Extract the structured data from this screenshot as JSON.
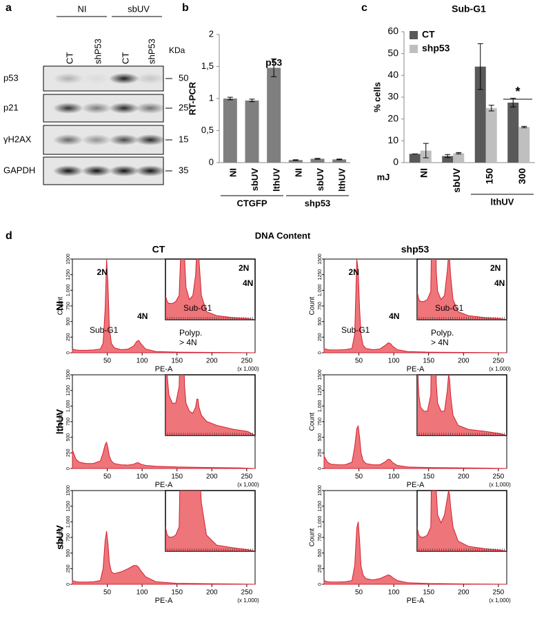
{
  "panel_labels": [
    "a",
    "b",
    "c",
    "d"
  ],
  "blot": {
    "group_labels": [
      "NI",
      "sbUV"
    ],
    "lane_labels": [
      "CT",
      "shP53",
      "CT",
      "shP53"
    ],
    "unit": "KDa",
    "bands": [
      {
        "label": "p53",
        "kda": 50
      },
      {
        "label": "p21",
        "kda": 25
      },
      {
        "label": "γH2AX",
        "kda": 15
      },
      {
        "label": "GAPDH",
        "kda": 35
      }
    ]
  },
  "flow": {
    "title": "DNA Content",
    "columns": [
      "CT",
      "shp53"
    ],
    "rows": [
      "NI",
      "lthUV",
      "sbUV"
    ]
  },
  "chart_data": [
    {
      "type": "bar",
      "title": "p53",
      "ylabel": "RT-PCR",
      "color": "#7f7f7f",
      "categories": [
        "NI",
        "sbUV",
        "lthUV",
        "NI",
        "sbUV",
        "lthUV"
      ],
      "values": [
        1.0,
        0.97,
        1.48,
        0.04,
        0.06,
        0.05
      ],
      "errors": [
        0.02,
        0.02,
        0.14,
        0.005,
        0.006,
        0.005
      ],
      "groups": [
        "CTGFP",
        "shp53"
      ],
      "ylim": [
        0,
        2
      ],
      "yticks": [
        0,
        {
          "value": 0.5,
          "label": "0,5"
        },
        1,
        {
          "value": 1.5,
          "label": "1,5"
        },
        2
      ]
    },
    {
      "type": "grouped-bar",
      "title": "Sub-G1",
      "ylabel": "% cells",
      "xlabel": "mJ",
      "group_label": "lthUV",
      "categories": [
        "NI",
        "sbUV",
        "150",
        "300"
      ],
      "series": [
        {
          "name": "CT",
          "color": "#595959",
          "values": [
            4,
            3,
            44,
            27.5
          ],
          "errors": [
            0,
            0.7,
            10.5,
            2
          ]
        },
        {
          "name": "shp53",
          "color": "#bfbfbf",
          "values": [
            5.5,
            4.3,
            25,
            16.3
          ],
          "errors": [
            3.3,
            0.3,
            1.3,
            0.3
          ]
        }
      ],
      "significance": "*",
      "legend": "upper-left",
      "ylim": [
        0,
        60
      ],
      "yticks": [
        0,
        10,
        20,
        30,
        40,
        50,
        60
      ]
    },
    {
      "type": "area",
      "color": "#e8474c",
      "xlabel": "PE-A",
      "xunit": "(x 1,000)",
      "ylabel": "Count",
      "x": [
        0,
        5,
        10,
        20,
        30,
        40,
        44,
        47,
        49,
        51,
        53,
        56,
        60,
        70,
        80,
        88,
        92,
        95,
        98,
        105,
        120,
        150,
        200,
        240,
        262
      ],
      "values": [
        60,
        45,
        40,
        40,
        45,
        60,
        150,
        700,
        1500,
        1100,
        400,
        150,
        80,
        50,
        60,
        110,
        180,
        200,
        150,
        60,
        20,
        10,
        5,
        3,
        0
      ],
      "annotations": [
        "2N",
        "4N",
        "Sub-G1",
        "Polyp.",
        "> 4N"
      ],
      "inset_annotations": [
        "2N",
        "4N",
        "Sub-G1"
      ],
      "xlim": [
        0,
        262
      ],
      "ylim": [
        0,
        1500
      ],
      "inset_ylim": [
        0,
        150
      ],
      "xticks": [
        50,
        100,
        150,
        200,
        250
      ],
      "yticks": [
        0,
        250,
        500,
        750,
        {
          "value": 1000,
          "label": "1,000"
        },
        1250,
        1500
      ]
    },
    {
      "type": "area",
      "color": "#e8474c",
      "xlabel": "PE-A",
      "xunit": "(x 1,000)",
      "ylabel": "Count",
      "x": [
        0,
        5,
        10,
        20,
        30,
        40,
        44,
        47,
        49,
        51,
        53,
        56,
        60,
        70,
        80,
        88,
        92,
        95,
        98,
        105,
        120,
        150,
        200,
        240,
        262
      ],
      "values": [
        70,
        50,
        45,
        45,
        50,
        70,
        300,
        1500,
        1300,
        700,
        300,
        120,
        70,
        50,
        60,
        120,
        160,
        150,
        110,
        50,
        20,
        10,
        5,
        3,
        0
      ],
      "annotations": [
        "2N",
        "4N",
        "Sub-G1",
        "Polyp.",
        "> 4N"
      ],
      "inset_annotations": [
        "2N",
        "4N",
        "Sub-G1"
      ],
      "xlim": [
        0,
        262
      ],
      "ylim": [
        0,
        1500
      ],
      "inset_ylim": [
        0,
        150
      ],
      "xticks": [
        50,
        100,
        150,
        200,
        250
      ],
      "yticks": [
        0,
        250,
        500,
        750,
        {
          "value": 1000,
          "label": "1,000"
        },
        1250,
        1500
      ]
    },
    {
      "type": "area",
      "color": "#e8474c",
      "xlabel": "PE-A",
      "xunit": "(x 1,000)",
      "ylabel": "Count",
      "x": [
        0,
        5,
        10,
        20,
        30,
        40,
        44,
        47,
        49,
        51,
        53,
        56,
        60,
        70,
        80,
        88,
        92,
        95,
        98,
        105,
        120,
        150,
        200,
        240,
        262
      ],
      "values": [
        300,
        150,
        100,
        80,
        80,
        120,
        250,
        380,
        420,
        330,
        200,
        120,
        80,
        60,
        55,
        70,
        90,
        90,
        70,
        50,
        35,
        25,
        15,
        10,
        0
      ],
      "xlim": [
        0,
        262
      ],
      "ylim": [
        0,
        1500
      ],
      "inset_ylim": [
        0,
        150
      ],
      "xticks": [
        50,
        100,
        150,
        200,
        250
      ],
      "yticks": [
        0,
        250,
        500,
        750,
        {
          "value": 1000,
          "label": "1,000"
        },
        1250,
        1500
      ]
    },
    {
      "type": "area",
      "color": "#e8474c",
      "xlabel": "PE-A",
      "xunit": "(x 1,000)",
      "ylabel": "Count",
      "x": [
        0,
        5,
        10,
        20,
        30,
        40,
        44,
        47,
        49,
        51,
        53,
        56,
        60,
        70,
        80,
        88,
        92,
        95,
        98,
        105,
        120,
        150,
        200,
        240,
        262
      ],
      "values": [
        200,
        100,
        70,
        60,
        60,
        100,
        350,
        640,
        680,
        500,
        260,
        130,
        80,
        60,
        60,
        110,
        150,
        140,
        100,
        50,
        25,
        15,
        10,
        5,
        0
      ],
      "xlim": [
        0,
        262
      ],
      "ylim": [
        0,
        1500
      ],
      "inset_ylim": [
        0,
        150
      ],
      "xticks": [
        50,
        100,
        150,
        200,
        250
      ],
      "yticks": [
        0,
        250,
        500,
        750,
        {
          "value": 1000,
          "label": "1,000"
        },
        1250,
        1500
      ]
    },
    {
      "type": "area",
      "color": "#e8474c",
      "xlabel": "PE-A",
      "xunit": "(x 1,000)",
      "ylabel": "Count",
      "x": [
        0,
        5,
        10,
        20,
        30,
        40,
        44,
        47,
        49,
        51,
        53,
        56,
        60,
        70,
        80,
        88,
        92,
        95,
        98,
        105,
        120,
        150,
        200,
        240,
        262
      ],
      "values": [
        60,
        40,
        35,
        35,
        40,
        60,
        250,
        700,
        850,
        650,
        350,
        200,
        170,
        200,
        250,
        300,
        300,
        270,
        220,
        120,
        40,
        15,
        8,
        4,
        0
      ],
      "xlim": [
        0,
        262
      ],
      "ylim": [
        0,
        1500
      ],
      "inset_ylim": [
        0,
        150
      ],
      "xticks": [
        50,
        100,
        150,
        200,
        250
      ],
      "yticks": [
        0,
        250,
        500,
        750,
        {
          "value": 1000,
          "label": "1,000"
        },
        1250,
        1500
      ]
    },
    {
      "type": "area",
      "color": "#e8474c",
      "xlabel": "PE-A",
      "xunit": "(x 1,000)",
      "ylabel": "Count",
      "x": [
        0,
        5,
        10,
        20,
        30,
        40,
        44,
        47,
        49,
        51,
        53,
        56,
        60,
        70,
        80,
        88,
        92,
        95,
        98,
        105,
        120,
        150,
        200,
        240,
        262
      ],
      "values": [
        60,
        40,
        35,
        35,
        40,
        60,
        300,
        900,
        1000,
        700,
        300,
        150,
        90,
        70,
        90,
        130,
        150,
        140,
        110,
        60,
        25,
        12,
        6,
        3,
        0
      ],
      "xlim": [
        0,
        262
      ],
      "ylim": [
        0,
        1500
      ],
      "inset_ylim": [
        0,
        150
      ],
      "xticks": [
        50,
        100,
        150,
        200,
        250
      ],
      "yticks": [
        0,
        250,
        500,
        750,
        {
          "value": 1000,
          "label": "1,000"
        },
        1250,
        1500
      ]
    }
  ]
}
